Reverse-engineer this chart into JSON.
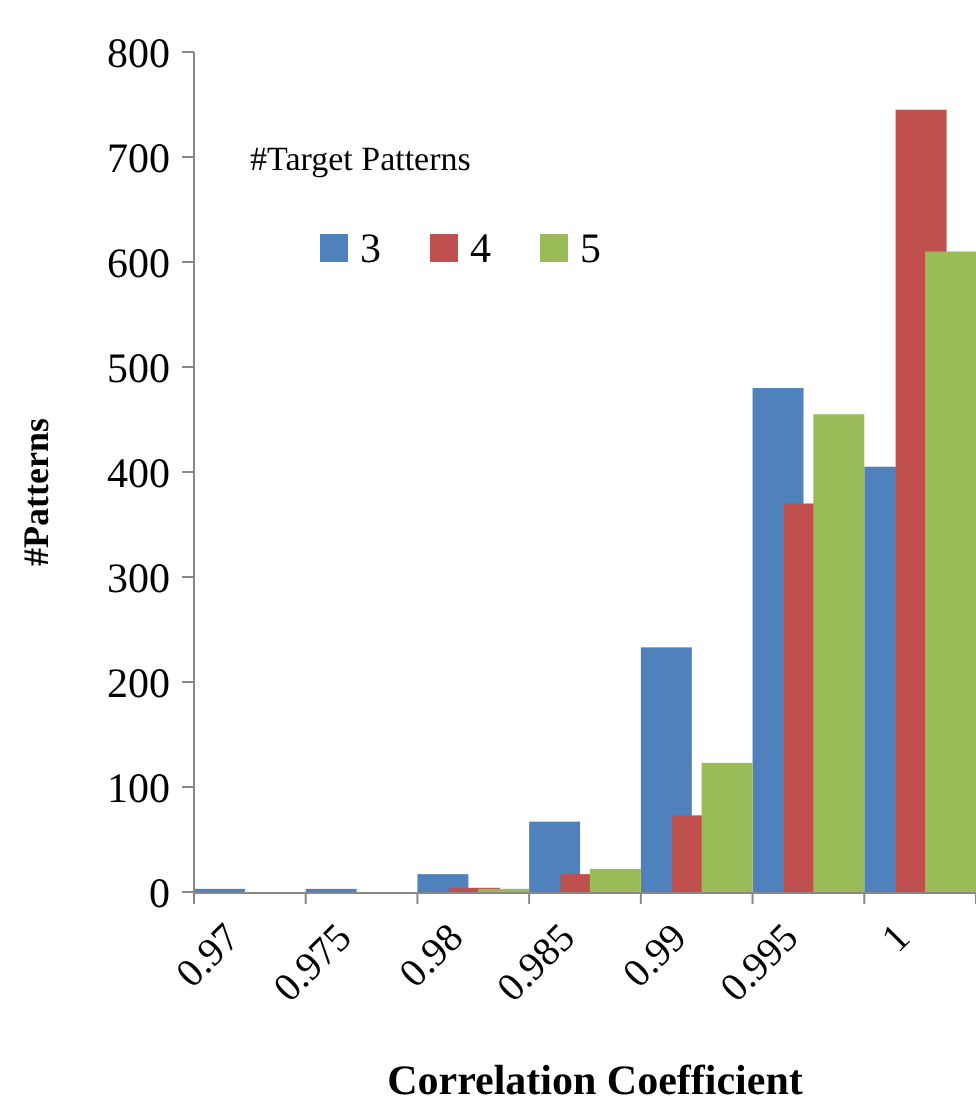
{
  "chart_data": {
    "type": "bar",
    "xlabel": "Correlation Coefficient",
    "ylabel": "#Patterns",
    "legend_title": "#Target Patterns",
    "legend": "top left",
    "grid": false,
    "categories": [
      "0.97",
      "0.975",
      "0.98",
      "0.985",
      "0.99",
      "0.995",
      "1"
    ],
    "series": [
      {
        "name": "3",
        "color": "#4f81bd",
        "values": [
          3,
          3,
          17,
          67,
          233,
          480,
          405
        ]
      },
      {
        "name": "4",
        "color": "#c0504d",
        "values": [
          0,
          0,
          4,
          17,
          73,
          370,
          745
        ]
      },
      {
        "name": "5",
        "color": "#9bbb59",
        "values": [
          0,
          0,
          3,
          22,
          123,
          455,
          610
        ]
      }
    ],
    "ylim": [
      0,
      800
    ],
    "yticks": [
      0,
      100,
      200,
      300,
      400,
      500,
      600,
      700,
      800
    ]
  }
}
